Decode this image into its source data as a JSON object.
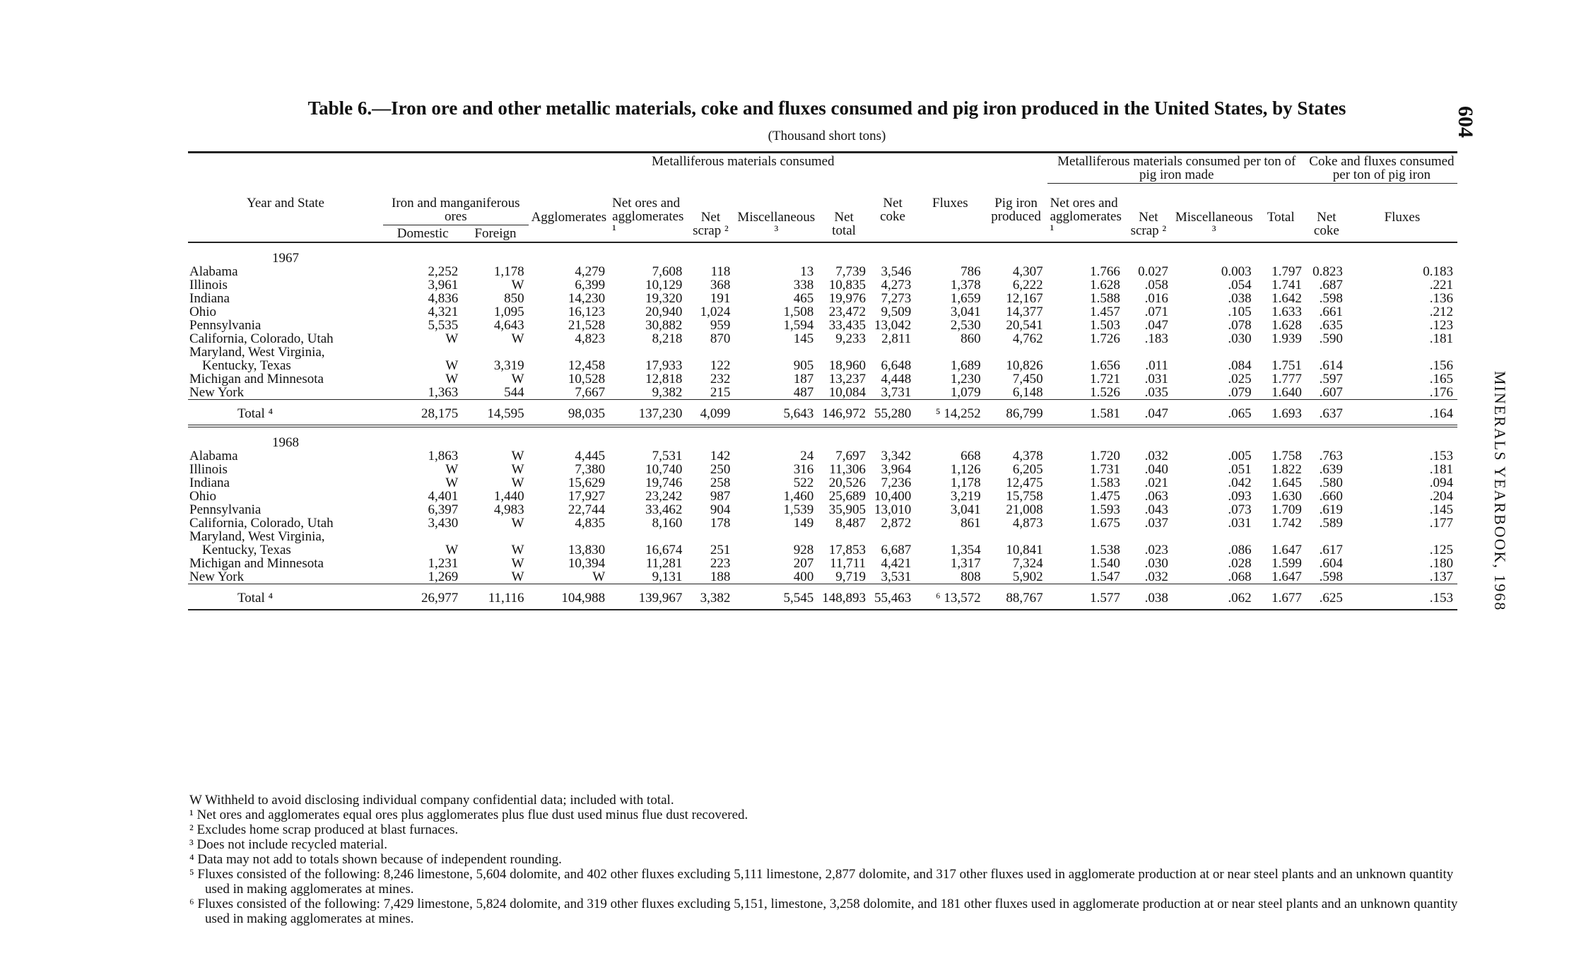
{
  "page_number": "604",
  "running_head": "MINERALS YEARBOOK, 1968",
  "title": "Table 6.—Iron ore and other metallic materials, coke and fluxes consumed and pig iron produced in the United States, by States",
  "subtitle": "(Thousand short tons)",
  "table": {
    "group_headers": [
      "Metalliferous materials consumed",
      "Metalliferous materials consumed per ton of pig iron made",
      "Coke and fluxes consumed per ton of pig iron"
    ],
    "headers": {
      "year_state": "Year and State",
      "ores": "Iron and manganiferous ores",
      "domestic": "Domestic",
      "foreign": "Foreign",
      "agglomerates": "Agglomerates",
      "net_ores": "Net ores and agglomerates ¹",
      "net_scrap": "Net scrap ²",
      "misc": "Miscellaneous ³",
      "net_total": "Net total",
      "net_coke": "Net coke",
      "fluxes": "Fluxes",
      "pig_iron": "Pig iron produced",
      "pt_net_ores": "Net ores and agglomerates ¹",
      "pt_net_scrap": "Net scrap ²",
      "pt_misc": "Miscellaneous ³",
      "pt_total": "Total",
      "pt_net_coke": "Net coke",
      "pt_fluxes": "Fluxes"
    },
    "sections": [
      {
        "year": "1967",
        "rows": [
          [
            "Alabama",
            "2,252",
            "1,178",
            "4,279",
            "7,608",
            "118",
            "13",
            "7,739",
            "3,546",
            "786",
            "4,307",
            "1.766",
            "0.027",
            "0.003",
            "1.797",
            "0.823",
            "0.183"
          ],
          [
            "Illinois",
            "3,961",
            "W",
            "6,399",
            "10,129",
            "368",
            "338",
            "10,835",
            "4,273",
            "1,378",
            "6,222",
            "1.628",
            ".058",
            ".054",
            "1.741",
            ".687",
            ".221"
          ],
          [
            "Indiana",
            "4,836",
            "850",
            "14,230",
            "19,320",
            "191",
            "465",
            "19,976",
            "7,273",
            "1,659",
            "12,167",
            "1.588",
            ".016",
            ".038",
            "1.642",
            ".598",
            ".136"
          ],
          [
            "Ohio",
            "4,321",
            "1,095",
            "16,123",
            "20,940",
            "1,024",
            "1,508",
            "23,472",
            "9,509",
            "3,041",
            "14,377",
            "1.457",
            ".071",
            ".105",
            "1.633",
            ".661",
            ".212"
          ],
          [
            "Pennsylvania",
            "5,535",
            "4,643",
            "21,528",
            "30,882",
            "959",
            "1,594",
            "33,435",
            "13,042",
            "2,530",
            "20,541",
            "1.503",
            ".047",
            ".078",
            "1.628",
            ".635",
            ".123"
          ],
          [
            "California, Colorado, Utah",
            "W",
            "W",
            "4,823",
            "8,218",
            "870",
            "145",
            "9,233",
            "2,811",
            "860",
            "4,762",
            "1.726",
            ".183",
            ".030",
            "1.939",
            ".590",
            ".181"
          ],
          [
            "Maryland, West Virginia, Kentucky, Texas",
            "W",
            "3,319",
            "12,458",
            "17,933",
            "122",
            "905",
            "18,960",
            "6,648",
            "1,689",
            "10,826",
            "1.656",
            ".011",
            ".084",
            "1.751",
            ".614",
            ".156"
          ],
          [
            "Michigan and Minnesota",
            "W",
            "W",
            "10,528",
            "12,818",
            "232",
            "187",
            "13,237",
            "4,448",
            "1,230",
            "7,450",
            "1.721",
            ".031",
            ".025",
            "1.777",
            ".597",
            ".165"
          ],
          [
            "New York",
            "1,363",
            "544",
            "7,667",
            "9,382",
            "215",
            "487",
            "10,084",
            "3,731",
            "1,079",
            "6,148",
            "1.526",
            ".035",
            ".079",
            "1.640",
            ".607",
            ".176"
          ]
        ],
        "total": [
          "Total ⁴",
          "28,175",
          "14,595",
          "98,035",
          "137,230",
          "4,099",
          "5,643",
          "146,972",
          "55,280",
          "⁵ 14,252",
          "86,799",
          "1.581",
          ".047",
          ".065",
          "1.693",
          ".637",
          ".164"
        ]
      },
      {
        "year": "1968",
        "rows": [
          [
            "Alabama",
            "1,863",
            "W",
            "4,445",
            "7,531",
            "142",
            "24",
            "7,697",
            "3,342",
            "668",
            "4,378",
            "1.720",
            ".032",
            ".005",
            "1.758",
            ".763",
            ".153"
          ],
          [
            "Illinois",
            "W",
            "W",
            "7,380",
            "10,740",
            "250",
            "316",
            "11,306",
            "3,964",
            "1,126",
            "6,205",
            "1.731",
            ".040",
            ".051",
            "1.822",
            ".639",
            ".181"
          ],
          [
            "Indiana",
            "W",
            "W",
            "15,629",
            "19,746",
            "258",
            "522",
            "20,526",
            "7,236",
            "1,178",
            "12,475",
            "1.583",
            ".021",
            ".042",
            "1.645",
            ".580",
            ".094"
          ],
          [
            "Ohio",
            "4,401",
            "1,440",
            "17,927",
            "23,242",
            "987",
            "1,460",
            "25,689",
            "10,400",
            "3,219",
            "15,758",
            "1.475",
            ".063",
            ".093",
            "1.630",
            ".660",
            ".204"
          ],
          [
            "Pennsylvania",
            "6,397",
            "4,983",
            "22,744",
            "33,462",
            "904",
            "1,539",
            "35,905",
            "13,010",
            "3,041",
            "21,008",
            "1.593",
            ".043",
            ".073",
            "1.709",
            ".619",
            ".145"
          ],
          [
            "California, Colorado, Utah",
            "3,430",
            "W",
            "4,835",
            "8,160",
            "178",
            "149",
            "8,487",
            "2,872",
            "861",
            "4,873",
            "1.675",
            ".037",
            ".031",
            "1.742",
            ".589",
            ".177"
          ],
          [
            "Maryland, West Virginia, Kentucky, Texas",
            "W",
            "W",
            "13,830",
            "16,674",
            "251",
            "928",
            "17,853",
            "6,687",
            "1,354",
            "10,841",
            "1.538",
            ".023",
            ".086",
            "1.647",
            ".617",
            ".125"
          ],
          [
            "Michigan and Minnesota",
            "1,231",
            "W",
            "10,394",
            "11,281",
            "223",
            "207",
            "11,711",
            "4,421",
            "1,317",
            "7,324",
            "1.540",
            ".030",
            ".028",
            "1.599",
            ".604",
            ".180"
          ],
          [
            "New York",
            "1,269",
            "W",
            "W",
            "9,131",
            "188",
            "400",
            "9,719",
            "3,531",
            "808",
            "5,902",
            "1.547",
            ".032",
            ".068",
            "1.647",
            ".598",
            ".137"
          ]
        ],
        "total": [
          "Total ⁴",
          "26,977",
          "11,116",
          "104,988",
          "139,967",
          "3,382",
          "5,545",
          "148,893",
          "55,463",
          "⁶ 13,572",
          "88,767",
          "1.577",
          ".038",
          ".062",
          "1.677",
          ".625",
          ".153"
        ]
      }
    ]
  },
  "footnotes": [
    "W Withheld to avoid disclosing individual company confidential data; included with total.",
    "¹ Net ores and agglomerates equal ores plus agglomerates plus flue dust used minus flue dust recovered.",
    "² Excludes home scrap produced at blast furnaces.",
    "³ Does not include recycled material.",
    "⁴ Data may not add to totals shown because of independent rounding.",
    "⁵ Fluxes consisted of the following: 8,246 limestone, 5,604 dolomite, and 402 other fluxes excluding 5,111 limestone, 2,877 dolomite, and 317 other fluxes used in agglomerate production at or near steel plants and an unknown quantity used in making agglomerates at mines.",
    "⁶ Fluxes consisted of the following: 7,429 limestone, 5,824 dolomite, and 319 other fluxes excluding 5,151, limestone, 3,258 dolomite, and 181 other fluxes used in agglomerate production at or near steel plants and an unknown quantity used in making agglomerates at mines."
  ]
}
